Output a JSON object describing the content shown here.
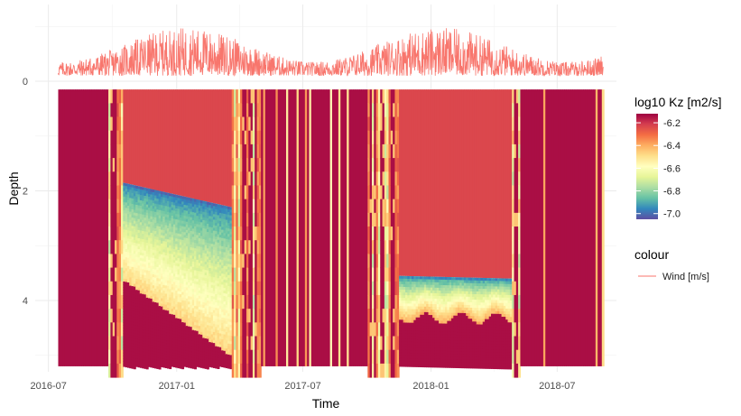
{
  "chart_data": {
    "type": "heatmap",
    "xlabel": "Time",
    "ylabel": "Depth",
    "x_ticks": [
      "2016-07",
      "2017-01",
      "2017-07",
      "2018-01",
      "2018-07"
    ],
    "y_ticks": [
      "0",
      "2",
      "4"
    ],
    "xlim": [
      "2016-06-12",
      "2018-09-24"
    ],
    "ylim": [
      -1.4,
      5.3
    ],
    "y_reversed": true,
    "grid": true,
    "heatmap": {
      "name": "log10 Kz [m2/s]",
      "depth_range": [
        0.15,
        5.2
      ],
      "time_range": [
        "2016-07-15",
        "2018-09-05"
      ],
      "colorbar_ticks": [
        -6.2,
        -6.4,
        -6.6,
        -6.8,
        -7.0
      ],
      "colorbar_range": [
        -7.05,
        -6.12
      ],
      "colormap": [
        "#5e4fa2",
        "#3288bd",
        "#66c2a5",
        "#abdda4",
        "#e6f598",
        "#ffffbf",
        "#fee08b",
        "#fdae61",
        "#f46d43",
        "#d53e4f",
        "#9e0142"
      ],
      "mixed_periods": [
        [
          "2016-07-15",
          "2016-09-25"
        ],
        [
          "2017-05-01",
          "2017-10-01"
        ],
        [
          "2018-05-08",
          "2018-09-05"
        ]
      ],
      "stratified_periods": [
        {
          "start": "2016-10-15",
          "end": "2017-03-20",
          "surface_value": -6.23,
          "thermocline_depth_start": 1.85,
          "thermocline_depth_end": 2.3,
          "min_value": -7.0
        },
        {
          "start": "2017-11-15",
          "end": "2018-04-25",
          "surface_value": -6.23,
          "thermocline_depth_start": 3.55,
          "thermocline_depth_end": 3.6,
          "min_value": -6.95
        }
      ]
    },
    "wind": {
      "name": "Wind [m/s]",
      "color": "#f8766d",
      "legend_title": "colour",
      "baseline_depth": -0.1,
      "amplitude_max": 1.25
    }
  }
}
